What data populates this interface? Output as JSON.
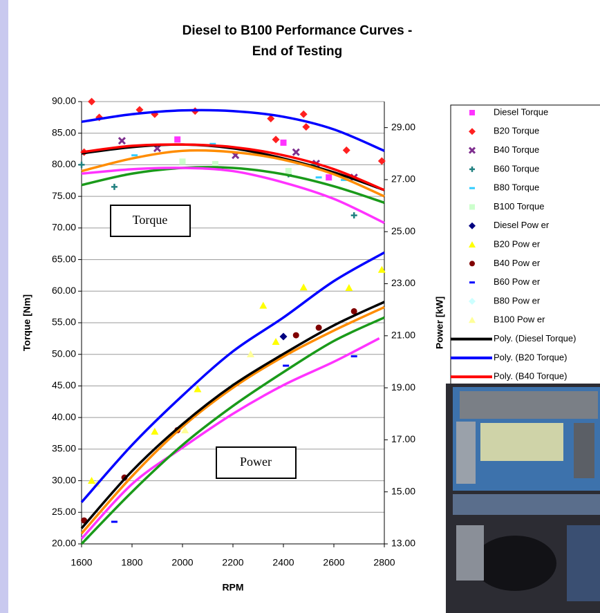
{
  "chart_data": {
    "type": "scatter",
    "title": [
      "Diesel to B100  Performance Curves -",
      "End of Testing"
    ],
    "x_label": "RPM",
    "y_label": "Torque [Nm]",
    "y2_label": "Power [kW]",
    "annotations": [
      "Torque",
      "Power"
    ],
    "xlim": [
      1600,
      2800
    ],
    "xticks": [
      1600,
      1800,
      2000,
      2200,
      2400,
      2600,
      2800
    ],
    "ylim": [
      20,
      90
    ],
    "yticks": [
      {
        "value": 20,
        "label": "20.00"
      },
      {
        "value": 25,
        "label": "25.00"
      },
      {
        "value": 30,
        "label": "30.00"
      },
      {
        "value": 35,
        "label": "35.00"
      },
      {
        "value": 40,
        "label": "40.00"
      },
      {
        "value": 45,
        "label": "45.00"
      },
      {
        "value": 50,
        "label": "50.00"
      },
      {
        "value": 55,
        "label": "55.00"
      },
      {
        "value": 60,
        "label": "60.00"
      },
      {
        "value": 65,
        "label": "65.00"
      },
      {
        "value": 70,
        "label": "70.00"
      },
      {
        "value": 75,
        "label": "75.00"
      },
      {
        "value": 80,
        "label": "80.00"
      },
      {
        "value": 85,
        "label": "85.00"
      },
      {
        "value": 90,
        "label": "90.00"
      }
    ],
    "y2lim": [
      13,
      30
    ],
    "y2ticks": [
      {
        "value": 13,
        "label": "13.00"
      },
      {
        "value": 15,
        "label": "15.00"
      },
      {
        "value": 17,
        "label": "17.00"
      },
      {
        "value": 19,
        "label": "19.00"
      },
      {
        "value": 21,
        "label": "21.00"
      },
      {
        "value": 23,
        "label": "23.00"
      },
      {
        "value": 25,
        "label": "25.00"
      },
      {
        "value": 27,
        "label": "27.00"
      },
      {
        "value": 29,
        "label": "29.00"
      }
    ],
    "grid": true,
    "series": [
      {
        "name": "Diesel Torque",
        "color": "#ff33ff",
        "marker": "square",
        "x": [
          1980,
          2400,
          2580
        ],
        "values": [
          84,
          83.5,
          78
        ]
      },
      {
        "name": "B20 Torque",
        "color": "#ff2020",
        "marker": "diamond",
        "x": [
          1610,
          1640,
          1670,
          1830,
          1890,
          2050,
          2350,
          2370,
          2480,
          2490,
          2650,
          2790
        ],
        "values": [
          82,
          90,
          87.5,
          88.7,
          88,
          88.5,
          87.3,
          84,
          88,
          86,
          82.3,
          80.6
        ]
      },
      {
        "name": "B40 Torque",
        "color": "#7f2f8f",
        "marker": "x",
        "x": [
          1760,
          1900,
          2210,
          2450,
          2530,
          2680
        ],
        "values": [
          83.8,
          82.6,
          81.5,
          82,
          80.2,
          78
        ]
      },
      {
        "name": "B60 Torque",
        "color": "#208080",
        "marker": "plus",
        "x": [
          1600,
          1730,
          2420,
          2520,
          2680
        ],
        "values": [
          80,
          76.5,
          78.5,
          80,
          72
        ]
      },
      {
        "name": "B80 Torque",
        "color": "#33ccff",
        "marker": "dash",
        "x": [
          1810,
          2120,
          2540,
          2640
        ],
        "values": [
          81.5,
          83.3,
          78,
          77.6
        ]
      },
      {
        "name": "B100 Torque",
        "color": "#ccffcc",
        "marker": "square",
        "x": [
          2000,
          2130,
          2420
        ],
        "values": [
          80.5,
          80.1,
          79
        ]
      },
      {
        "name": "Diesel Pow er",
        "color": "#000080",
        "marker": "diamond",
        "axis": "y2",
        "x": [
          2400
        ],
        "values": [
          20.97
        ]
      },
      {
        "name": "B20 Pow er",
        "color": "#ffff00",
        "marker": "triangle",
        "axis": "y2",
        "x": [
          1640,
          1890,
          2060,
          2320,
          2370,
          2480,
          2660,
          2790
        ],
        "values": [
          15.43,
          17.32,
          18.95,
          22.16,
          20.77,
          22.86,
          22.84,
          23.54
        ]
      },
      {
        "name": "B40 Pow er",
        "color": "#800000",
        "marker": "circle",
        "axis": "y2",
        "x": [
          1610,
          1770,
          1980,
          2450,
          2540,
          2680
        ],
        "values": [
          13.9,
          15.55,
          17.37,
          21.02,
          21.31,
          21.94
        ]
      },
      {
        "name": "B60 Pow er",
        "color": "#0000ff",
        "marker": "dash",
        "axis": "y2",
        "x": [
          1730,
          2410,
          2680
        ],
        "values": [
          13.85,
          19.85,
          20.21
        ]
      },
      {
        "name": "B80 Pow er",
        "color": "#ccffff",
        "marker": "diamond",
        "axis": "y2",
        "x": [
          1620,
          2200
        ],
        "values": [
          13.24,
          19.07
        ]
      },
      {
        "name": "B100 Pow er",
        "color": "#ffff99",
        "marker": "triangle",
        "axis": "y2",
        "x": [
          1660,
          2010,
          2270
        ],
        "values": [
          15.31,
          17.37,
          20.29
        ]
      },
      {
        "name": "Poly. (Diesel Torque)",
        "color": "#000000",
        "type": "line",
        "x": [
          1600,
          1800,
          2000,
          2200,
          2400,
          2600,
          2800
        ],
        "values": [
          81.8,
          82.8,
          83.2,
          82.6,
          81,
          78.8,
          76
        ]
      },
      {
        "name": "Poly. (B20 Torque)",
        "color": "#0000ff",
        "type": "line",
        "x": [
          1600,
          1800,
          2000,
          2200,
          2400,
          2600,
          2800
        ],
        "values": [
          86.8,
          88,
          88.6,
          88.5,
          87.6,
          85.6,
          82.2
        ]
      },
      {
        "name": "Poly. (B40 Torque)",
        "color": "#ff0000",
        "type": "line",
        "x": [
          1600,
          1800,
          2000,
          2200,
          2400,
          2600,
          2800
        ],
        "values": [
          82,
          83,
          83.2,
          82.8,
          81.5,
          79.3,
          76
        ]
      },
      {
        "color": "#ff8c00",
        "type": "line",
        "x": [
          1600,
          1800,
          2000,
          2200,
          2400,
          2600,
          2800
        ],
        "values": [
          79,
          81,
          82.2,
          82,
          80.8,
          78.5,
          75
        ]
      },
      {
        "color": "#1a9a1a",
        "type": "line",
        "x": [
          1600,
          1800,
          2000,
          2200,
          2400,
          2600,
          2800
        ],
        "values": [
          76.8,
          78.6,
          79.5,
          79.5,
          78.5,
          76.6,
          74
        ]
      },
      {
        "color": "#ff33ff",
        "type": "line",
        "x": [
          1600,
          1800,
          2000,
          2200,
          2400,
          2600,
          2800
        ],
        "values": [
          78.6,
          79.3,
          79.5,
          79,
          77.2,
          74.6,
          70.8
        ]
      },
      {
        "color": "#ff33ff",
        "type": "line",
        "axis": "y2",
        "x": [
          1600,
          1800,
          2000,
          2200,
          2400,
          2600,
          2780
        ],
        "values": [
          13.2,
          15.3,
          16.7,
          18,
          19.1,
          20,
          20.9
        ]
      },
      {
        "color": "#1a9a1a",
        "type": "line",
        "axis": "y2",
        "x": [
          1600,
          1800,
          2000,
          2200,
          2400,
          2600,
          2800
        ],
        "values": [
          13,
          15,
          16.8,
          18.3,
          19.6,
          20.8,
          21.7
        ]
      },
      {
        "color": "#ff8c00",
        "type": "line",
        "axis": "y2",
        "x": [
          1600,
          1800,
          2000,
          2200,
          2400,
          2600,
          2800
        ],
        "values": [
          13.4,
          15.6,
          17.5,
          19,
          20.2,
          21.2,
          22.1
        ]
      },
      {
        "color": "#0000ff",
        "type": "line",
        "axis": "y2",
        "x": [
          1600,
          1800,
          2000,
          2200,
          2400,
          2600,
          2800
        ],
        "values": [
          14.6,
          16.8,
          18.7,
          20.4,
          21.7,
          23.1,
          24.2
        ]
      },
      {
        "color": "#000000",
        "type": "line",
        "axis": "y2",
        "x": [
          1600,
          1800,
          2000,
          2200,
          2400,
          2600,
          2800
        ],
        "values": [
          13.6,
          15.8,
          17.6,
          19.1,
          20.3,
          21.4,
          22.3
        ]
      }
    ]
  }
}
